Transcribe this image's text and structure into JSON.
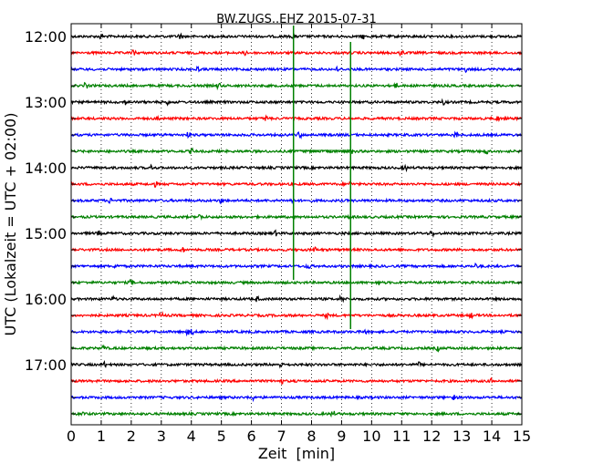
{
  "chart_data": {
    "type": "line",
    "title": "BW.ZUGS..EHZ 2015-07-31",
    "xlabel": "Zeit  [min]",
    "ylabel": "UTC (Lokalzeit = UTC + 02:00)",
    "xlim": [
      0,
      15
    ],
    "x_ticks": [
      0,
      1,
      2,
      3,
      4,
      5,
      6,
      7,
      8,
      9,
      10,
      11,
      12,
      13,
      14,
      15
    ],
    "x_tick_labels": [
      "0",
      "1",
      "2",
      "3",
      "4",
      "5",
      "6",
      "7",
      "8",
      "9",
      "10",
      "11",
      "12",
      "13",
      "14",
      "15"
    ],
    "y_tick_labels": [
      "12:00",
      "13:00",
      "14:00",
      "15:00",
      "16:00",
      "17:00"
    ],
    "trace_interval_min": 15,
    "first_trace_start": "12:00",
    "trace_colors": [
      "#000000",
      "#ff0000",
      "#0000ff",
      "#008000"
    ],
    "trace_count": 24,
    "grid": "vertical dotted at each minute",
    "series": [
      {
        "start": "12:00",
        "color": "#000000",
        "spikes_min": [
          1.0,
          3.6,
          7.4,
          9.7
        ]
      },
      {
        "start": "12:15",
        "color": "#ff0000",
        "spikes_min": [
          2.1,
          5.8,
          11.0
        ]
      },
      {
        "start": "12:30",
        "color": "#0000ff",
        "spikes_min": [
          4.2,
          8.9,
          13.1
        ]
      },
      {
        "start": "12:45",
        "color": "#008000",
        "spikes_min": [
          0.5,
          4.9,
          10.8
        ]
      },
      {
        "start": "13:00",
        "color": "#000000",
        "spikes_min": [
          1.8,
          3.2,
          12.4
        ]
      },
      {
        "start": "13:15",
        "color": "#ff0000",
        "spikes_min": [
          2.9,
          6.5,
          14.2
        ]
      },
      {
        "start": "13:30",
        "color": "#0000ff",
        "spikes_min": [
          3.9,
          7.6,
          12.8
        ]
      },
      {
        "start": "13:45",
        "color": "#008000",
        "spikes_min": [
          4.0,
          9.3,
          13.8
        ]
      },
      {
        "start": "14:00",
        "color": "#000000",
        "spikes_min": [
          2.7,
          11.1
        ]
      },
      {
        "start": "14:15",
        "color": "#ff0000",
        "spikes_min": [
          2.8,
          9.3
        ]
      },
      {
        "start": "14:30",
        "color": "#0000ff",
        "spikes_min": [
          1.3,
          5.0,
          7.3
        ]
      },
      {
        "start": "14:45",
        "color": "#008000",
        "spikes_min": [
          4.3,
          9.3
        ]
      },
      {
        "start": "15:00",
        "color": "#000000",
        "spikes_min": [
          0.9,
          6.8,
          12.0
        ]
      },
      {
        "start": "15:15",
        "color": "#ff0000",
        "spikes_min": [
          3.7,
          8.1
        ]
      },
      {
        "start": "15:30",
        "color": "#0000ff",
        "spikes_min": [
          1.5,
          7.9,
          13.5
        ]
      },
      {
        "start": "15:45",
        "color": "#008000",
        "spikes_min": [
          2.0,
          10.2
        ]
      },
      {
        "start": "16:00",
        "color": "#000000",
        "spikes_min": [
          1.4,
          6.2,
          9.0
        ]
      },
      {
        "start": "16:15",
        "color": "#ff0000",
        "spikes_min": [
          3.0,
          8.5,
          13.3
        ]
      },
      {
        "start": "16:30",
        "color": "#0000ff",
        "spikes_min": [
          3.9,
          4.0,
          9.8
        ]
      },
      {
        "start": "16:45",
        "color": "#008000",
        "spikes_min": [
          1.1,
          12.2
        ]
      },
      {
        "start": "17:00",
        "color": "#000000",
        "spikes_min": [
          1.1,
          7.0,
          11.6
        ]
      },
      {
        "start": "17:15",
        "color": "#ff0000",
        "spikes_min": [
          7.0,
          14.0
        ]
      },
      {
        "start": "17:30",
        "color": "#0000ff",
        "spikes_min": [
          6.0,
          12.7
        ]
      },
      {
        "start": "17:45",
        "color": "#008000",
        "spikes_min": [
          0.4,
          8.7
        ]
      }
    ],
    "event_markers": [
      {
        "x_min": 7.4,
        "from": "12:00",
        "to": "15:45",
        "color": "#008000"
      },
      {
        "x_min": 9.3,
        "from": "12:15",
        "to": "16:30",
        "color": "#008000"
      }
    ]
  }
}
